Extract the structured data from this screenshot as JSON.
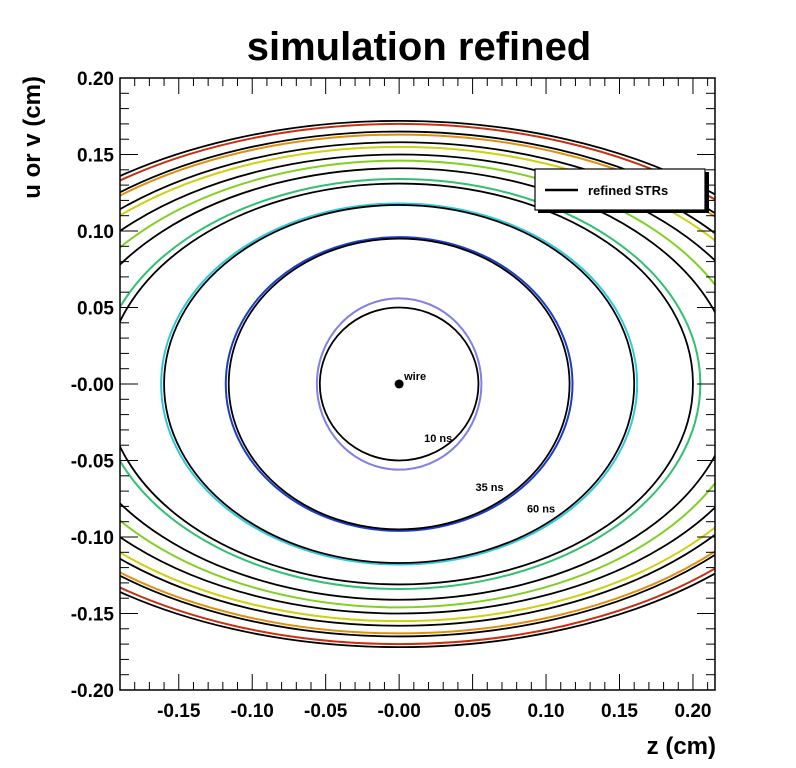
{
  "chart_data": {
    "type": "line",
    "title": "simulation refined",
    "xlabel": "z (cm)",
    "ylabel": "u or v (cm)",
    "xlim": [
      -0.19,
      0.215
    ],
    "ylim": [
      -0.2,
      0.2
    ],
    "x_ticks": [
      -0.15,
      -0.1,
      -0.05,
      0.0,
      0.05,
      0.1,
      0.15,
      0.2
    ],
    "x_tick_labels": [
      "-0.15",
      "-0.10",
      "-0.05",
      "-0.00",
      "0.05",
      "0.10",
      "0.15",
      "0.20"
    ],
    "y_ticks": [
      -0.2,
      -0.15,
      -0.1,
      -0.05,
      0.0,
      0.05,
      0.1,
      0.15,
      0.2
    ],
    "y_tick_labels": [
      "-0.20",
      "-0.15",
      "-0.10",
      "-0.05",
      "-0.00",
      "0.05",
      "0.10",
      "0.15",
      "0.20"
    ],
    "grid": false,
    "legend": {
      "position": "top-right",
      "entries": [
        {
          "label": "refined STRs",
          "color": "#000000"
        }
      ]
    },
    "wire": {
      "x": 0.0,
      "y": 0.0,
      "label": "wire"
    },
    "annotations": [
      {
        "text": "10 ns",
        "x": 0.017,
        "y": -0.038
      },
      {
        "text": "35 ns",
        "x": 0.052,
        "y": -0.07
      },
      {
        "text": "60 ns",
        "x": 0.087,
        "y": -0.084
      }
    ],
    "simulation_contours": [
      {
        "rx": 0.056,
        "ry": 0.056,
        "color": "#8080e6"
      },
      {
        "rx": 0.118,
        "ry": 0.096,
        "color": "#1a3ccc"
      },
      {
        "rx": 0.162,
        "ry": 0.118,
        "color": "#30c8d8"
      },
      {
        "rx": 0.205,
        "ry": 0.134,
        "color": "#30c070"
      },
      {
        "rx": 0.24,
        "ry": 0.146,
        "color": "#80d020"
      },
      {
        "rx": 0.27,
        "ry": 0.155,
        "color": "#d0d010"
      },
      {
        "rx": 0.29,
        "ry": 0.163,
        "color": "#e09010"
      },
      {
        "rx": 0.305,
        "ry": 0.17,
        "color": "#c83010"
      }
    ],
    "refined_contours": [
      {
        "rx": 0.054,
        "ry": 0.05,
        "color": "#000000"
      },
      {
        "rx": 0.116,
        "ry": 0.095,
        "color": "#000000"
      },
      {
        "rx": 0.16,
        "ry": 0.117,
        "color": "#000000"
      },
      {
        "rx": 0.2,
        "ry": 0.131,
        "color": "#000000"
      },
      {
        "rx": 0.228,
        "ry": 0.141,
        "color": "#000000"
      },
      {
        "rx": 0.255,
        "ry": 0.15,
        "color": "#000000"
      },
      {
        "rx": 0.275,
        "ry": 0.158,
        "color": "#000000"
      },
      {
        "rx": 0.292,
        "ry": 0.165,
        "color": "#000000"
      },
      {
        "rx": 0.31,
        "ry": 0.172,
        "color": "#000000"
      }
    ]
  }
}
